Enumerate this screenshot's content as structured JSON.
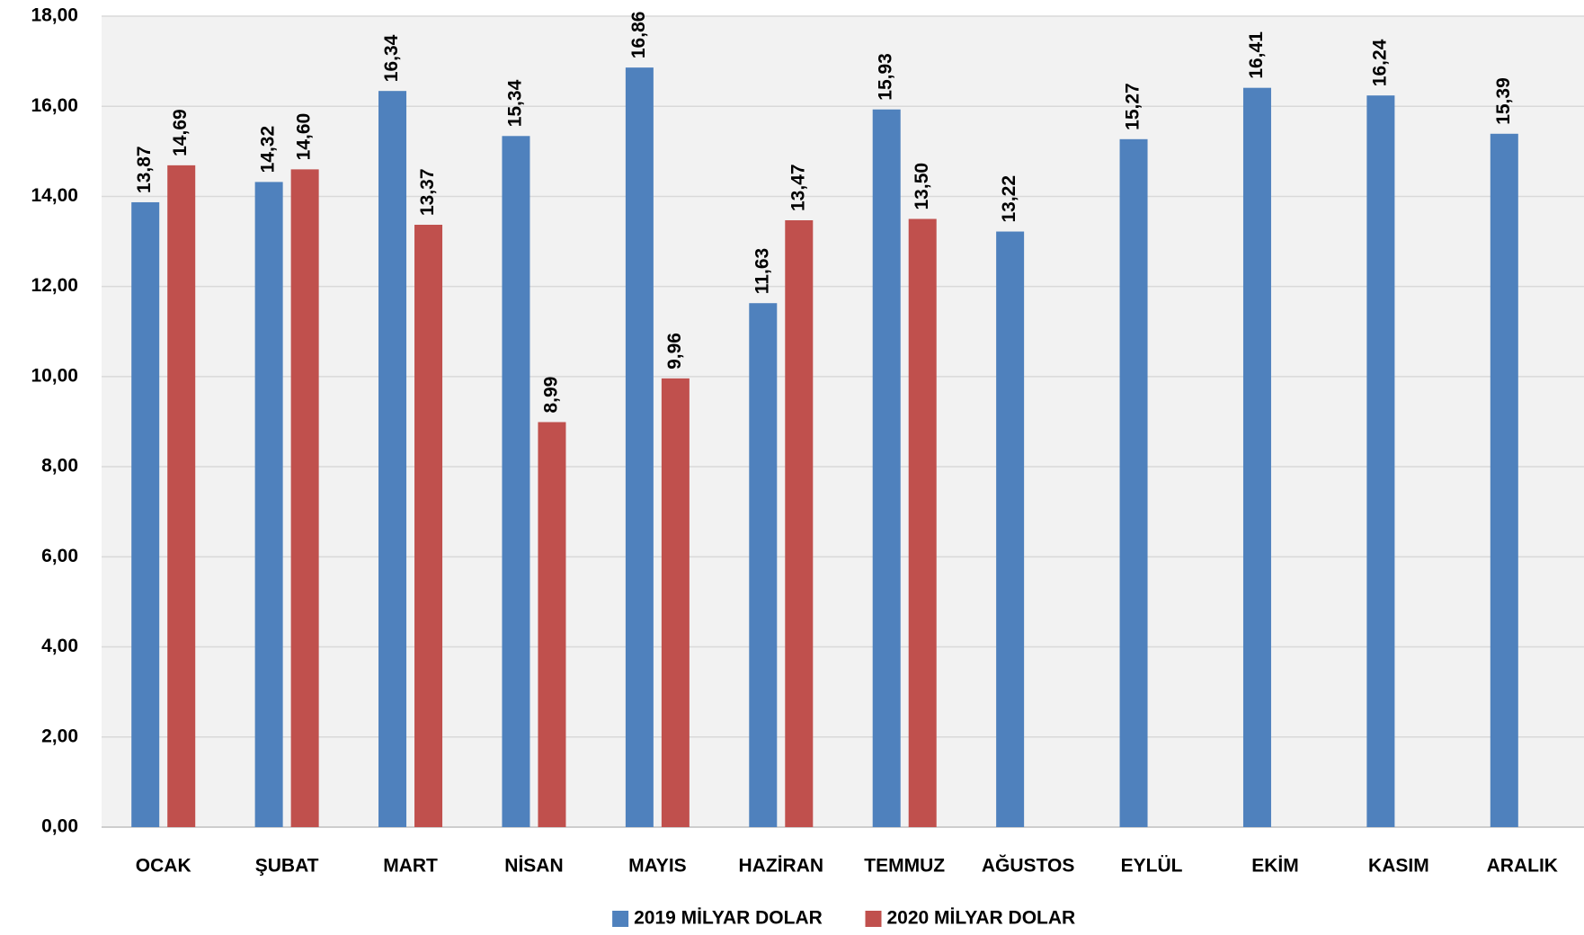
{
  "chart_data": {
    "type": "bar",
    "categories": [
      "OCAK",
      "ŞUBAT",
      "MART",
      "NİSAN",
      "MAYIS",
      "HAZİRAN",
      "TEMMUZ",
      "AĞUSTOS",
      "EYLÜL",
      "EKİM",
      "KASIM",
      "ARALIK"
    ],
    "series": [
      {
        "name": "2019 MİLYAR DOLAR",
        "color": "#4f81bd",
        "values": [
          13.87,
          14.32,
          16.34,
          15.34,
          16.86,
          11.63,
          15.93,
          13.22,
          15.27,
          16.41,
          16.24,
          15.39
        ],
        "value_labels": [
          "13,87",
          "14,32",
          "16,34",
          "15,34",
          "16,86",
          "11,63",
          "15,93",
          "13,22",
          "15,27",
          "16,41",
          "16,24",
          "15,39"
        ]
      },
      {
        "name": "2020 MİLYAR DOLAR",
        "color": "#c0504d",
        "values": [
          14.69,
          14.6,
          13.37,
          8.99,
          9.96,
          13.47,
          13.5,
          null,
          null,
          null,
          null,
          null
        ],
        "value_labels": [
          "14,69",
          "14,60",
          "13,37",
          "8,99",
          "9,96",
          "13,47",
          "13,50",
          null,
          null,
          null,
          null,
          null
        ]
      }
    ],
    "ylim": [
      0,
      18
    ],
    "yticks": [
      {
        "value": 0,
        "label": "0,00"
      },
      {
        "value": 2,
        "label": "2,00"
      },
      {
        "value": 4,
        "label": "4,00"
      },
      {
        "value": 6,
        "label": "6,00"
      },
      {
        "value": 8,
        "label": "8,00"
      },
      {
        "value": 10,
        "label": "10,00"
      },
      {
        "value": 12,
        "label": "12,00"
      },
      {
        "value": 14,
        "label": "14,00"
      },
      {
        "value": 16,
        "label": "16,00"
      },
      {
        "value": 18,
        "label": "18,00"
      }
    ],
    "grid": true,
    "legend": "bottom"
  }
}
